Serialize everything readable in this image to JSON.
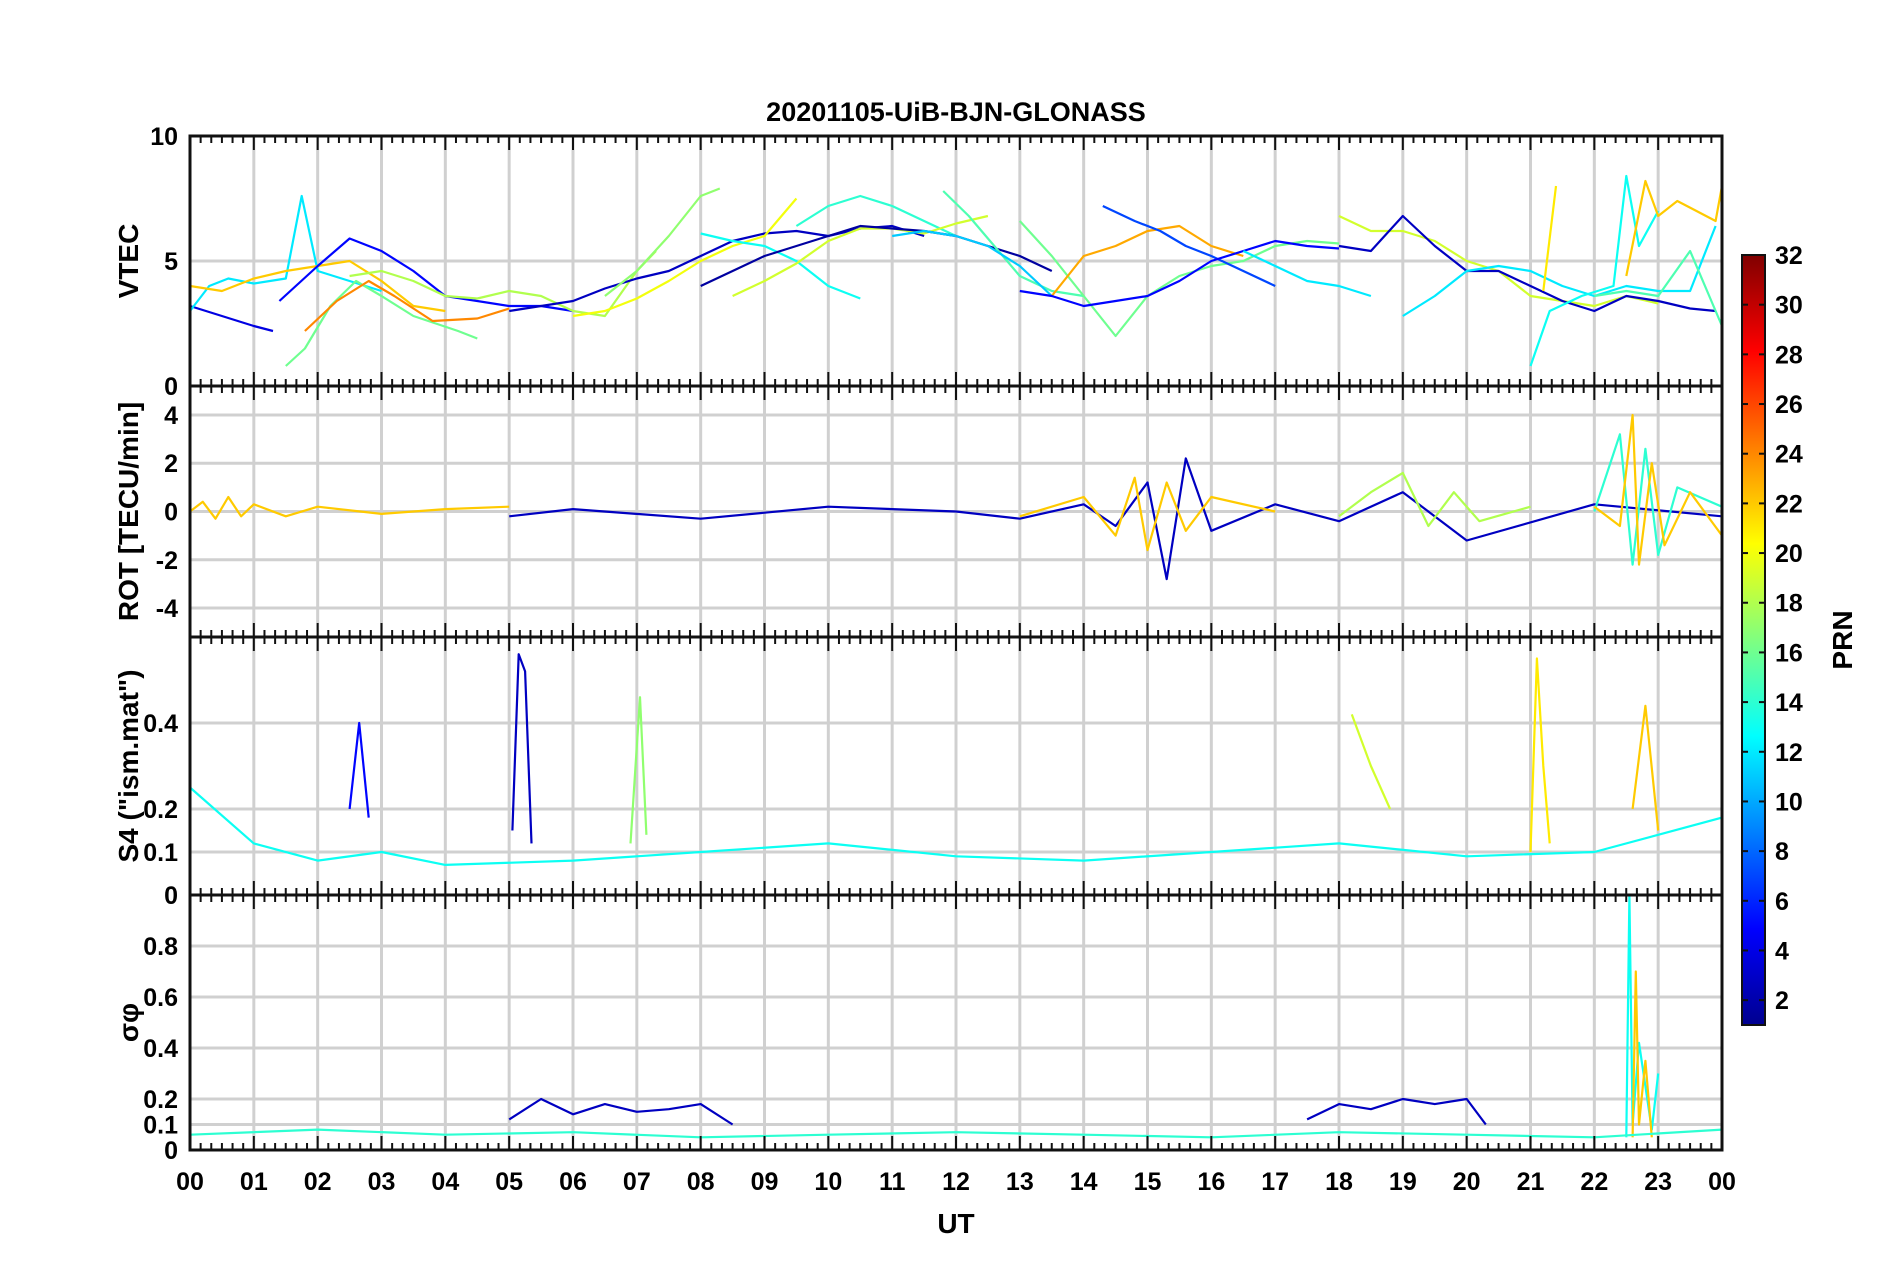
{
  "figure": {
    "title": "20201105-UiB-BJN-GLONASS",
    "xlabel": "UT",
    "x_ticks": [
      "00",
      "01",
      "02",
      "03",
      "04",
      "05",
      "06",
      "07",
      "08",
      "09",
      "10",
      "11",
      "12",
      "13",
      "14",
      "15",
      "16",
      "17",
      "18",
      "19",
      "20",
      "21",
      "22",
      "23",
      "00"
    ]
  },
  "colorbar": {
    "label": "PRN",
    "colormap": "jet",
    "range": [
      1,
      32
    ],
    "ticks": [
      2,
      4,
      6,
      8,
      10,
      12,
      14,
      16,
      18,
      20,
      22,
      24,
      26,
      28,
      30,
      32
    ]
  },
  "chart_data": [
    {
      "type": "line",
      "panel": "vtec",
      "ylabel": "VTEC",
      "ylim": [
        0,
        10
      ],
      "yticks": [
        0,
        5,
        10
      ],
      "xlim": [
        0,
        24
      ],
      "grid": true,
      "series": [
        {
          "prn": 4,
          "x": [
            0.0,
            0.5,
            1.0,
            1.3
          ],
          "y": [
            3.2,
            2.8,
            2.4,
            2.2
          ]
        },
        {
          "prn": 12,
          "x": [
            0.0,
            0.3,
            0.6,
            1.0,
            1.5,
            1.75,
            2.0,
            2.5,
            3.0
          ],
          "y": [
            3.0,
            4.0,
            4.3,
            4.1,
            4.3,
            7.6,
            4.6,
            4.2,
            3.8
          ]
        },
        {
          "prn": 22,
          "x": [
            0.0,
            0.5,
            1.0,
            1.5,
            2.0,
            2.5,
            3.0,
            3.5,
            4.0
          ],
          "y": [
            4.0,
            3.8,
            4.3,
            4.6,
            4.8,
            5.0,
            4.2,
            3.2,
            3.0
          ]
        },
        {
          "prn": 16,
          "x": [
            1.5,
            1.8,
            2.2,
            2.6,
            3.0,
            3.5,
            4.2,
            4.5
          ],
          "y": [
            0.8,
            1.5,
            3.2,
            4.2,
            3.6,
            2.8,
            2.2,
            1.9
          ]
        },
        {
          "prn": 24,
          "x": [
            1.8,
            2.3,
            2.8,
            3.2,
            3.8,
            4.5,
            5.0
          ],
          "y": [
            2.2,
            3.4,
            4.2,
            3.6,
            2.6,
            2.7,
            3.1
          ]
        },
        {
          "prn": 5,
          "x": [
            1.4,
            2.0,
            2.5,
            3.0,
            3.5,
            4.0,
            5.0,
            5.5,
            6.0
          ],
          "y": [
            3.4,
            4.8,
            5.9,
            5.4,
            4.6,
            3.6,
            3.2,
            3.2,
            3.0
          ]
        },
        {
          "prn": 18,
          "x": [
            2.5,
            3.0,
            3.5,
            4.0,
            4.5,
            5.0,
            5.5,
            6.0,
            6.5,
            7.0,
            7.3
          ],
          "y": [
            4.4,
            4.6,
            4.2,
            3.6,
            3.5,
            3.8,
            3.6,
            3.0,
            2.8,
            4.6,
            5.4
          ]
        },
        {
          "prn": 3,
          "x": [
            5.0,
            5.5,
            6.0,
            6.5,
            7.0,
            7.5,
            8.0,
            8.5,
            9.0,
            9.5,
            10.0,
            10.5,
            11.0,
            11.5
          ],
          "y": [
            3.0,
            3.2,
            3.4,
            3.9,
            4.3,
            4.6,
            5.2,
            5.8,
            6.1,
            6.2,
            6.0,
            6.3,
            6.4,
            6.0
          ]
        },
        {
          "prn": 20,
          "x": [
            6.0,
            6.5,
            7.0,
            7.5,
            8.0,
            8.5,
            9.0,
            9.5
          ],
          "y": [
            2.8,
            3.0,
            3.5,
            4.2,
            5.0,
            5.6,
            6.0,
            7.5
          ]
        },
        {
          "prn": 17,
          "x": [
            6.5,
            7.0,
            7.5,
            8.0,
            8.3
          ],
          "y": [
            3.6,
            4.6,
            6.0,
            7.6,
            7.9
          ]
        },
        {
          "prn": 13,
          "x": [
            8.0,
            8.5,
            9.0,
            9.5,
            10.0,
            10.5
          ],
          "y": [
            6.1,
            5.8,
            5.6,
            5.0,
            4.0,
            3.5
          ]
        },
        {
          "prn": 14,
          "x": [
            9.5,
            10.0,
            10.5,
            11.0,
            11.5,
            12.0
          ],
          "y": [
            6.4,
            7.2,
            7.6,
            7.2,
            6.6,
            6.0
          ]
        },
        {
          "prn": 19,
          "x": [
            8.5,
            9.0,
            9.5,
            10.0,
            10.5,
            11.0,
            11.5,
            12.0,
            12.5
          ],
          "y": [
            3.6,
            4.2,
            4.9,
            5.8,
            6.3,
            6.3,
            6.1,
            6.5,
            6.8
          ]
        },
        {
          "prn": 2,
          "x": [
            8.0,
            8.5,
            9.0,
            9.5,
            10.0,
            10.5,
            11.0,
            11.5,
            12.0,
            12.5,
            13.0,
            13.5
          ],
          "y": [
            4.0,
            4.6,
            5.2,
            5.6,
            6.0,
            6.4,
            6.3,
            6.2,
            6.0,
            5.6,
            5.2,
            4.6
          ]
        },
        {
          "prn": 15,
          "x": [
            11.8,
            12.2,
            12.6,
            13.0,
            13.5,
            14.0
          ],
          "y": [
            7.8,
            6.8,
            5.6,
            4.4,
            3.8,
            3.6
          ]
        },
        {
          "prn": 11,
          "x": [
            11.0,
            11.5,
            12.0,
            12.5,
            13.0,
            13.5
          ],
          "y": [
            6.0,
            6.2,
            6.0,
            5.6,
            4.8,
            3.6
          ]
        },
        {
          "prn": 16,
          "x": [
            13.0,
            13.5,
            14.0,
            14.5,
            15.0,
            15.5,
            16.0,
            16.5,
            17.0,
            17.5,
            18.0
          ],
          "y": [
            6.6,
            5.2,
            3.6,
            2.0,
            3.6,
            4.4,
            4.8,
            5.0,
            5.6,
            5.8,
            5.7
          ]
        },
        {
          "prn": 23,
          "x": [
            13.5,
            14.0,
            14.5,
            15.0,
            15.5,
            16.0,
            16.5
          ],
          "y": [
            3.6,
            5.2,
            5.6,
            6.2,
            6.4,
            5.6,
            5.2
          ]
        },
        {
          "prn": 7,
          "x": [
            14.3,
            14.8,
            15.2,
            15.6,
            16.0,
            16.5,
            17.0
          ],
          "y": [
            7.2,
            6.6,
            6.2,
            5.6,
            5.2,
            4.6,
            4.0
          ]
        },
        {
          "prn": 5,
          "x": [
            13.0,
            13.5,
            14.0,
            14.5,
            15.0,
            15.5,
            16.0,
            16.5,
            17.0,
            17.5,
            18.0
          ],
          "y": [
            3.8,
            3.6,
            3.2,
            3.4,
            3.6,
            4.2,
            5.0,
            5.4,
            5.8,
            5.6,
            5.5
          ]
        },
        {
          "prn": 12,
          "x": [
            16.5,
            17.0,
            17.5,
            18.0,
            18.5
          ],
          "y": [
            5.4,
            4.8,
            4.2,
            4.0,
            3.6
          ]
        },
        {
          "prn": 19,
          "x": [
            18.0,
            18.5,
            19.0,
            19.5,
            20.0,
            20.5,
            21.0,
            21.5,
            22.0,
            22.5,
            23.0
          ],
          "y": [
            6.8,
            6.2,
            6.2,
            5.8,
            5.0,
            4.6,
            3.6,
            3.4,
            3.2,
            3.6,
            3.3
          ]
        },
        {
          "prn": 3,
          "x": [
            18.0,
            18.5,
            19.0,
            19.5,
            20.0,
            20.5,
            21.0,
            21.5,
            22.0,
            22.5,
            23.0,
            23.5,
            23.9
          ],
          "y": [
            5.6,
            5.4,
            6.8,
            5.6,
            4.6,
            4.6,
            4.0,
            3.4,
            3.0,
            3.6,
            3.4,
            3.1,
            3.0
          ]
        },
        {
          "prn": 12,
          "x": [
            19.0,
            19.5,
            20.0,
            20.5,
            21.0,
            21.5,
            22.0,
            22.5,
            23.0,
            23.5,
            23.9
          ],
          "y": [
            2.8,
            3.6,
            4.6,
            4.8,
            4.6,
            4.0,
            3.6,
            4.0,
            3.8,
            3.8,
            6.4
          ]
        },
        {
          "prn": 21,
          "x": [
            21.2,
            21.4
          ],
          "y": [
            3.8,
            8.0
          ]
        },
        {
          "prn": 13,
          "x": [
            21.0,
            21.3,
            21.8,
            22.3,
            22.5,
            22.7,
            23.0
          ],
          "y": [
            0.8,
            3.0,
            3.6,
            4.0,
            8.4,
            5.6,
            7.0
          ]
        },
        {
          "prn": 22,
          "x": [
            22.5,
            22.8,
            23.0,
            23.3,
            23.6,
            23.9,
            24.0
          ],
          "y": [
            4.4,
            8.2,
            6.8,
            7.4,
            7.0,
            6.6,
            8.0
          ]
        },
        {
          "prn": 15,
          "x": [
            22.0,
            22.5,
            23.0,
            23.5,
            24.0
          ],
          "y": [
            3.6,
            3.8,
            3.6,
            5.4,
            2.4
          ]
        }
      ]
    },
    {
      "type": "line",
      "panel": "rot",
      "ylabel": "ROT [TECU/min]",
      "ylim": [
        -5.2,
        5.2
      ],
      "yticks": [
        -4,
        -2,
        0,
        2,
        4
      ],
      "xlim": [
        0,
        24
      ],
      "grid": true,
      "series": [
        {
          "prn": 22,
          "x": [
            0.0,
            0.2,
            0.4,
            0.6,
            0.8,
            1.0,
            1.5,
            2.0,
            3.0,
            4.0,
            5.0
          ],
          "y": [
            0.0,
            0.4,
            -0.3,
            0.6,
            -0.2,
            0.3,
            -0.2,
            0.2,
            -0.1,
            0.1,
            0.2
          ]
        },
        {
          "prn": 3,
          "x": [
            5.0,
            6.0,
            8.0,
            10.0,
            12.0,
            13.0,
            14.0,
            14.5,
            15.0,
            15.3,
            15.6,
            16.0,
            17.0,
            18.0,
            19.0,
            20.0,
            22.0,
            24.0
          ],
          "y": [
            -0.2,
            0.1,
            -0.3,
            0.2,
            0.0,
            -0.3,
            0.3,
            -0.6,
            1.2,
            -2.8,
            2.2,
            -0.8,
            0.3,
            -0.4,
            0.8,
            -1.2,
            0.3,
            -0.2
          ]
        },
        {
          "prn": 22,
          "x": [
            13.0,
            14.0,
            14.5,
            14.8,
            15.0,
            15.3,
            15.6,
            16.0,
            17.0
          ],
          "y": [
            -0.2,
            0.6,
            -1.0,
            1.4,
            -1.6,
            1.2,
            -0.8,
            0.6,
            0.0
          ]
        },
        {
          "prn": 18,
          "x": [
            18.0,
            18.5,
            19.0,
            19.4,
            19.8,
            20.2,
            21.0
          ],
          "y": [
            -0.2,
            0.8,
            1.6,
            -0.6,
            0.8,
            -0.4,
            0.2
          ]
        },
        {
          "prn": 14,
          "x": [
            22.0,
            22.4,
            22.6,
            22.8,
            23.0,
            23.3,
            24.0
          ],
          "y": [
            0.0,
            3.2,
            -2.2,
            2.6,
            -1.8,
            1.0,
            0.2
          ]
        },
        {
          "prn": 22,
          "x": [
            22.0,
            22.4,
            22.6,
            22.7,
            22.9,
            23.1,
            23.5,
            24.0
          ],
          "y": [
            0.2,
            -0.6,
            4.0,
            -2.2,
            2.0,
            -1.4,
            0.8,
            -1.0
          ]
        }
      ]
    },
    {
      "type": "line",
      "panel": "s4",
      "ylabel": "S4 (\"ism.mat\")",
      "ylim": [
        0,
        0.6
      ],
      "yticks": [
        0,
        0.1,
        0.2,
        0.4
      ],
      "xlim": [
        0,
        24
      ],
      "grid": true,
      "series": [
        {
          "prn": 3,
          "x": [
            5.05,
            5.15,
            5.25,
            5.35
          ],
          "y": [
            0.15,
            0.56,
            0.52,
            0.12
          ]
        },
        {
          "prn": 17,
          "x": [
            6.9,
            7.05,
            7.15
          ],
          "y": [
            0.12,
            0.46,
            0.14
          ]
        },
        {
          "prn": 21,
          "x": [
            21.0,
            21.1,
            21.2,
            21.3
          ],
          "y": [
            0.1,
            0.55,
            0.3,
            0.12
          ]
        },
        {
          "prn": 19,
          "x": [
            18.2,
            18.5,
            18.8
          ],
          "y": [
            0.42,
            0.3,
            0.2
          ]
        },
        {
          "prn": 22,
          "x": [
            22.6,
            22.8,
            23.0
          ],
          "y": [
            0.2,
            0.44,
            0.15
          ]
        },
        {
          "prn": 5,
          "x": [
            2.5,
            2.65,
            2.8
          ],
          "y": [
            0.2,
            0.4,
            0.18
          ]
        },
        {
          "prn": 13,
          "x": [
            0.0,
            1.0,
            2.0,
            3.0,
            4.0,
            6.0,
            8.0,
            10.0,
            12.0,
            14.0,
            16.0,
            18.0,
            20.0,
            22.0,
            24.0
          ],
          "y": [
            0.25,
            0.12,
            0.08,
            0.1,
            0.07,
            0.08,
            0.1,
            0.12,
            0.09,
            0.08,
            0.1,
            0.12,
            0.09,
            0.1,
            0.18
          ]
        }
      ]
    },
    {
      "type": "line",
      "panel": "sigma_phi",
      "ylabel": "σφ",
      "ylim": [
        0,
        1
      ],
      "yticks": [
        0,
        0.1,
        0.2,
        0.4,
        0.6,
        0.8
      ],
      "xlim": [
        0,
        24
      ],
      "grid": true,
      "series": [
        {
          "prn": 3,
          "x": [
            5.0,
            5.5,
            6.0,
            6.5,
            7.0,
            7.5,
            8.0,
            8.5
          ],
          "y": [
            0.12,
            0.2,
            0.14,
            0.18,
            0.15,
            0.16,
            0.18,
            0.1
          ]
        },
        {
          "prn": 3,
          "x": [
            17.5,
            18.0,
            18.5,
            19.0,
            19.5,
            20.0,
            20.3
          ],
          "y": [
            0.12,
            0.18,
            0.16,
            0.2,
            0.18,
            0.2,
            0.1
          ]
        },
        {
          "prn": 13,
          "x": [
            22.5,
            22.55,
            22.6,
            22.7,
            22.9,
            23.0
          ],
          "y": [
            0.05,
            1.0,
            0.1,
            0.42,
            0.08,
            0.3
          ]
        },
        {
          "prn": 22,
          "x": [
            22.6,
            22.65,
            22.7,
            22.8,
            22.9
          ],
          "y": [
            0.05,
            0.7,
            0.1,
            0.35,
            0.05
          ]
        },
        {
          "prn": 14,
          "x": [
            0.0,
            2.0,
            4.0,
            6.0,
            8.0,
            10.0,
            12.0,
            14.0,
            16.0,
            18.0,
            20.0,
            22.0,
            24.0
          ],
          "y": [
            0.06,
            0.08,
            0.06,
            0.07,
            0.05,
            0.06,
            0.07,
            0.06,
            0.05,
            0.07,
            0.06,
            0.05,
            0.08
          ]
        }
      ]
    }
  ]
}
